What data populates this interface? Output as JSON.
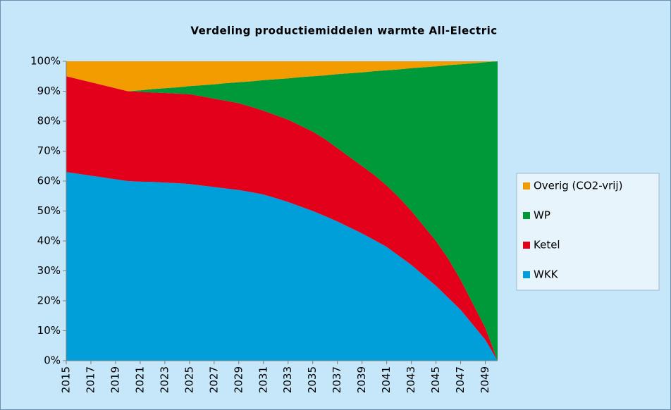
{
  "chart_data": {
    "type": "stacked_area",
    "title": "Verdeling productiemiddelen warmte All-Electric",
    "x": [
      2015,
      2016,
      2017,
      2018,
      2019,
      2020,
      2021,
      2022,
      2023,
      2024,
      2025,
      2026,
      2027,
      2028,
      2029,
      2030,
      2031,
      2032,
      2033,
      2034,
      2035,
      2036,
      2037,
      2038,
      2039,
      2040,
      2041,
      2042,
      2043,
      2044,
      2045,
      2046,
      2047,
      2048,
      2049,
      2050
    ],
    "series": [
      {
        "name": "WKK",
        "color": "#009fda",
        "values": [
          63,
          62.4,
          61.8,
          61.2,
          60.6,
          60,
          59.8,
          59.7,
          59.5,
          59.3,
          59,
          58.5,
          58,
          57.5,
          57,
          56.3,
          55.5,
          54.3,
          53,
          51.5,
          50,
          48.3,
          46.5,
          44.5,
          42.5,
          40.3,
          38,
          35,
          32,
          28.5,
          25,
          21,
          17,
          12,
          7,
          0
        ]
      },
      {
        "name": "Ketel",
        "color": "#e2001a",
        "values": [
          32,
          31.6,
          31.2,
          30.8,
          30.4,
          30,
          30,
          29.9,
          29.9,
          29.9,
          30,
          29.8,
          29.5,
          29.3,
          29,
          28.5,
          28,
          27.7,
          27.5,
          27,
          26.5,
          25.7,
          24.5,
          23.5,
          22.5,
          21.7,
          20.5,
          19.5,
          18,
          16.5,
          15,
          13,
          10,
          7,
          4,
          0
        ]
      },
      {
        "name": "WP",
        "color": "#00993a",
        "values": [
          0,
          0,
          0,
          0,
          0,
          0,
          0.5,
          1.1,
          1.6,
          2.1,
          2.7,
          3.7,
          4.8,
          5.9,
          7,
          8.5,
          10.2,
          12,
          13.8,
          16.2,
          18.5,
          21.3,
          24.7,
          28,
          31.3,
          34.7,
          38.5,
          42.8,
          47.7,
          53,
          58.3,
          64.7,
          72,
          80.3,
          88.7,
          100
        ]
      },
      {
        "name": "Overig (CO2-vrij)",
        "color": "#f29c00",
        "values": [
          5,
          6,
          7,
          8,
          9,
          10,
          9.7,
          9.3,
          9,
          8.7,
          8.3,
          8,
          7.7,
          7.3,
          7,
          6.7,
          6.3,
          6,
          5.7,
          5.3,
          5,
          4.7,
          4.3,
          4,
          3.7,
          3.3,
          3,
          2.7,
          2.3,
          2,
          1.7,
          1.3,
          1,
          0.7,
          0.3,
          0
        ]
      }
    ],
    "xlim": [
      2015,
      2050
    ],
    "xticks": [
      2015,
      2017,
      2019,
      2021,
      2023,
      2025,
      2027,
      2029,
      2031,
      2033,
      2035,
      2037,
      2039,
      2041,
      2043,
      2045,
      2047,
      2049
    ],
    "ylim": [
      0,
      100
    ],
    "yticks": [
      {
        "value": 0,
        "label": "0%"
      },
      {
        "value": 10,
        "label": "10%"
      },
      {
        "value": 20,
        "label": "20%"
      },
      {
        "value": 30,
        "label": "30%"
      },
      {
        "value": 40,
        "label": "40%"
      },
      {
        "value": 50,
        "label": "50%"
      },
      {
        "value": 60,
        "label": "60%"
      },
      {
        "value": 70,
        "label": "70%"
      },
      {
        "value": 80,
        "label": "80%"
      },
      {
        "value": 90,
        "label": "90%"
      },
      {
        "value": 100,
        "label": "100%"
      }
    ],
    "legend": "right"
  }
}
